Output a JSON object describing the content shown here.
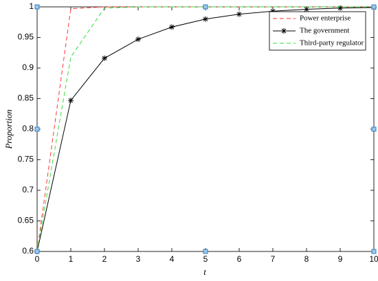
{
  "chart_data": {
    "type": "line",
    "xlabel": "t",
    "ylabel": "Proportion",
    "x": [
      0,
      1,
      2,
      3,
      4,
      5,
      6,
      7,
      8,
      9,
      10
    ],
    "series": [
      {
        "name": "Power enterprise",
        "color": "#ff3333",
        "dash": true,
        "marker": "none",
        "values": [
          0.6,
          0.997,
          1,
          1,
          1,
          1,
          1,
          1,
          1,
          1,
          1
        ]
      },
      {
        "name": "The government",
        "color": "#000000",
        "dash": false,
        "marker": "asterisk",
        "values": [
          0.6,
          0.847,
          0.916,
          0.947,
          0.967,
          0.98,
          0.988,
          0.993,
          0.996,
          0.998,
          0.999
        ]
      },
      {
        "name": "Third-party regulator",
        "color": "#33dd33",
        "dash": true,
        "marker": "none",
        "values": [
          0.6,
          0.918,
          0.998,
          1,
          1,
          1,
          1,
          1,
          1,
          1,
          1
        ]
      }
    ],
    "points": {
      "color": "#2f7fc0",
      "x": [
        0,
        0,
        0,
        5,
        5,
        10,
        10,
        10
      ],
      "y": [
        1,
        0.8,
        0.6,
        1,
        0.6,
        1,
        0.8,
        0.6
      ]
    },
    "xlim": [
      0,
      10
    ],
    "xticks": [
      0,
      1,
      2,
      3,
      4,
      5,
      6,
      7,
      8,
      9,
      10
    ],
    "ylim": [
      0.6,
      1
    ],
    "yticks": [
      0.6,
      0.65,
      0.7,
      0.75,
      0.8,
      0.85,
      0.9,
      0.95,
      1
    ],
    "legend": "top-right"
  }
}
